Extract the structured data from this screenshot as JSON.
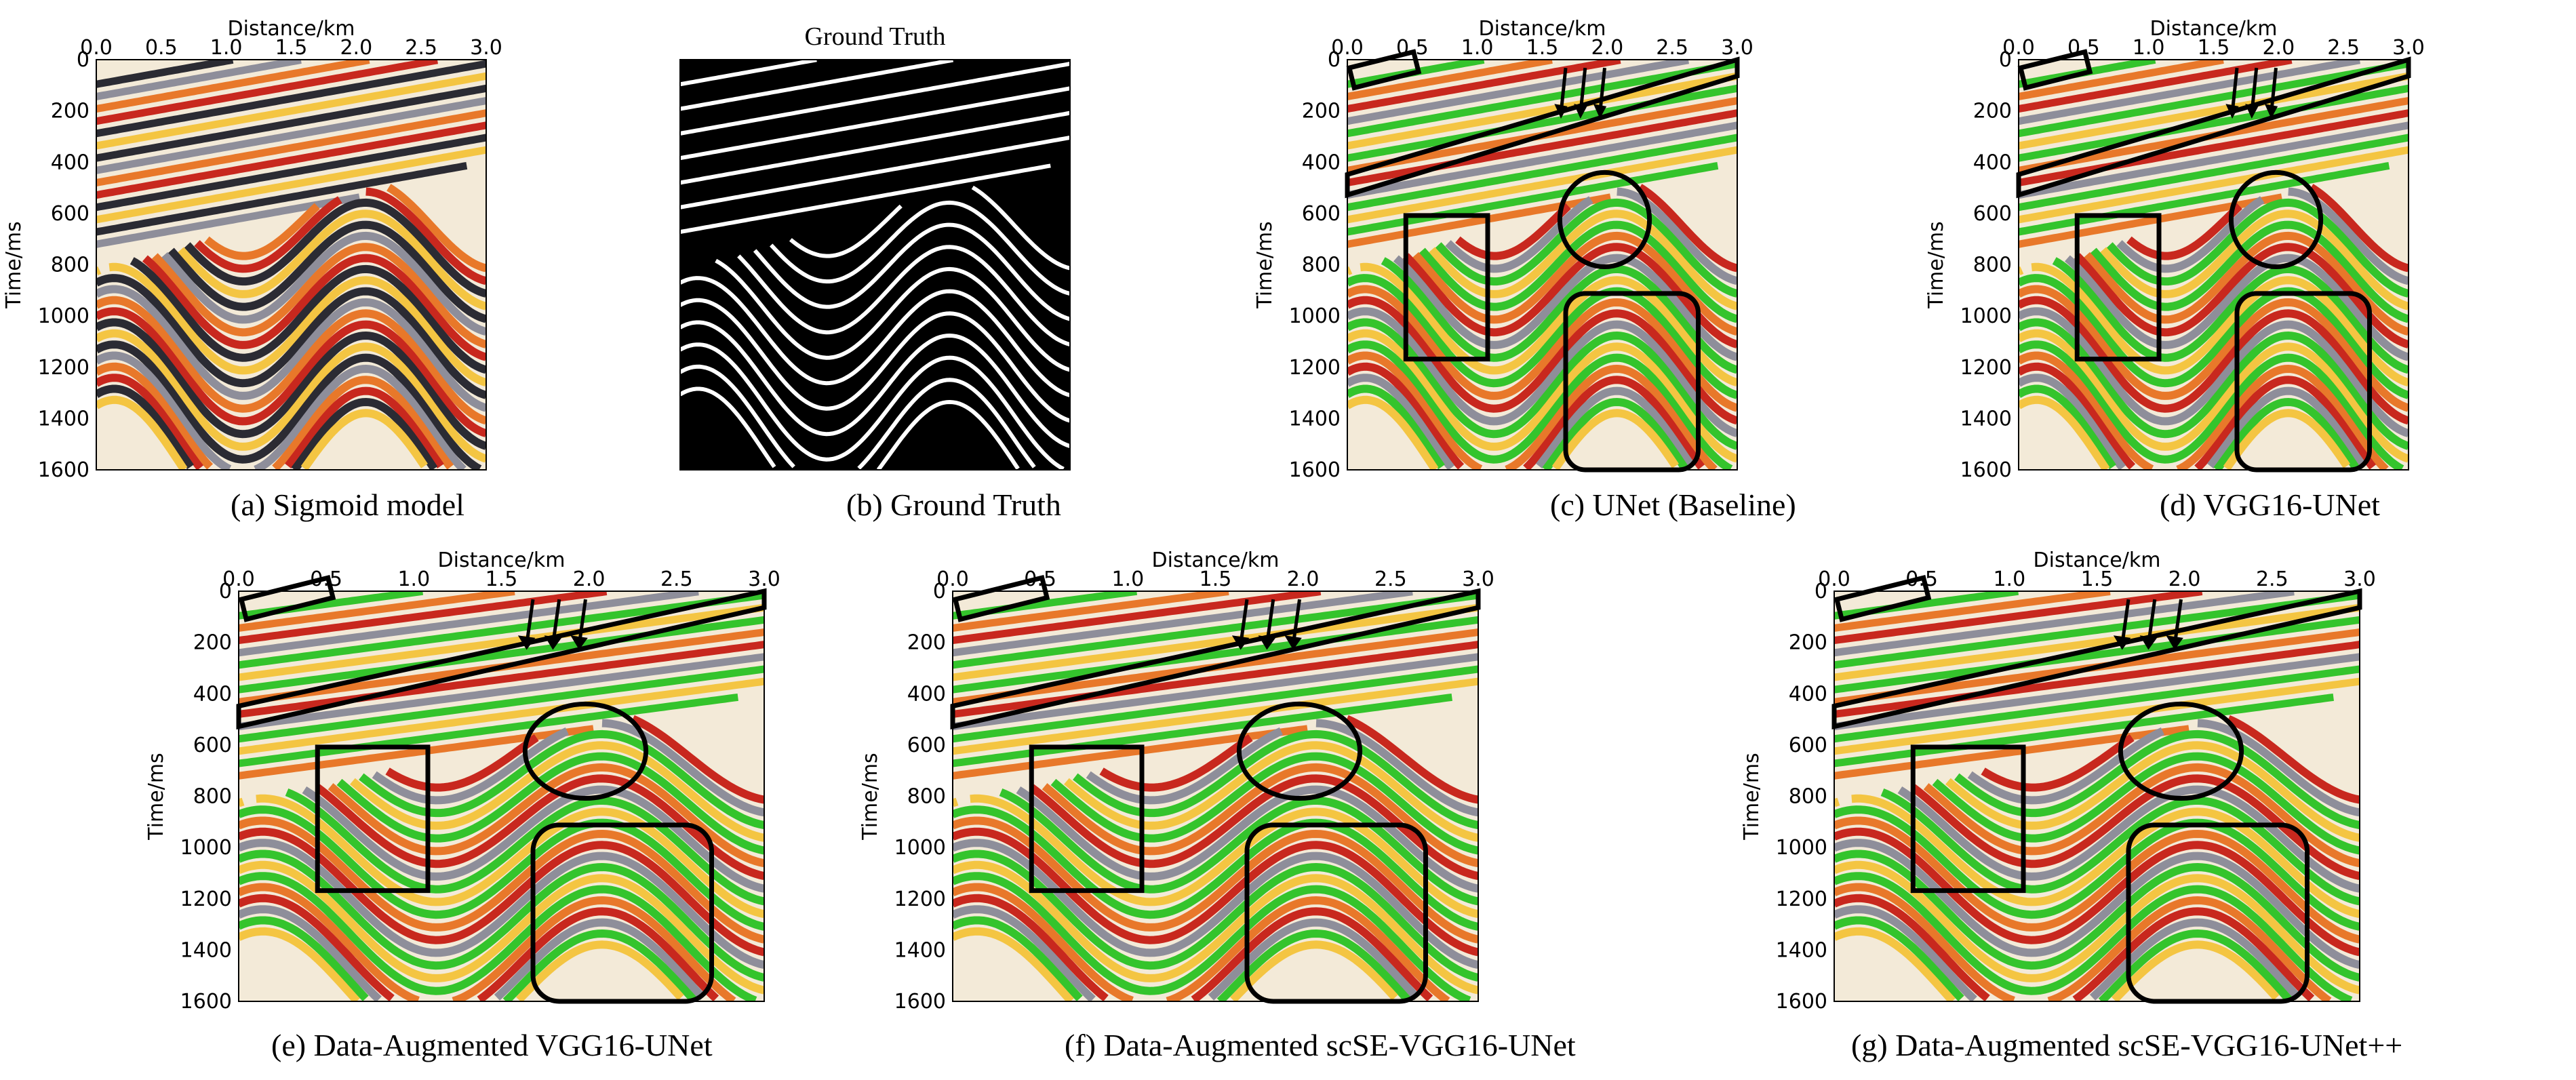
{
  "figure": {
    "panels": [
      {
        "id": "a",
        "caption": "(a) Sigmoid model",
        "style": "seismic",
        "title": "",
        "xlabel": "Distance/km",
        "ylabel": "Time/ms",
        "annotated": false
      },
      {
        "id": "b",
        "caption": "(b) Ground Truth",
        "style": "binary",
        "title": "Ground Truth",
        "xlabel": "",
        "ylabel": "",
        "annotated": false
      },
      {
        "id": "c",
        "caption": "(c) UNet (Baseline)",
        "style": "prediction",
        "title": "",
        "xlabel": "Distance/km",
        "ylabel": "Time/ms",
        "annotated": true
      },
      {
        "id": "d",
        "caption": "(d) VGG16-UNet",
        "style": "prediction",
        "title": "",
        "xlabel": "Distance/km",
        "ylabel": "Time/ms",
        "annotated": true
      },
      {
        "id": "e",
        "caption": "(e)  Data-Augmented VGG16-UNet",
        "style": "prediction",
        "title": "",
        "xlabel": "Distance/km",
        "ylabel": "Time/ms",
        "annotated": true
      },
      {
        "id": "f",
        "caption": "(f)  Data-Augmented scSE-VGG16-UNet",
        "style": "prediction",
        "title": "",
        "xlabel": "Distance/km",
        "ylabel": "Time/ms",
        "annotated": true
      },
      {
        "id": "g",
        "caption": "(g)  Data-Augmented scSE-VGG16-UNet++",
        "style": "prediction",
        "title": "",
        "xlabel": "Distance/km",
        "ylabel": "Time/ms",
        "annotated": true
      }
    ],
    "x_ticks": [
      "0.0",
      "0.5",
      "1.0",
      "1.5",
      "2.0",
      "2.5",
      "3.0"
    ],
    "y_ticks": [
      "0",
      "200",
      "400",
      "600",
      "800",
      "1000",
      "1200",
      "1400",
      "1600"
    ],
    "xlim": [
      0,
      3.0
    ],
    "ylim": [
      0,
      1600
    ],
    "colors": {
      "background": "#f3ead8",
      "dark_reflector": "#2b2b33",
      "gray_reflector": "#8e8e9a",
      "orange": "#e8782a",
      "red": "#c8281e",
      "yellow": "#f4c542",
      "green": "#34c42c",
      "mask_bg": "#000000",
      "mask_line": "#ffffff",
      "annotation": "#000000"
    },
    "annotations": [
      "rectangle-top-left",
      "oblique-band",
      "arrows-x3",
      "circle",
      "rectangle-left",
      "rounded-rectangle-right"
    ]
  }
}
